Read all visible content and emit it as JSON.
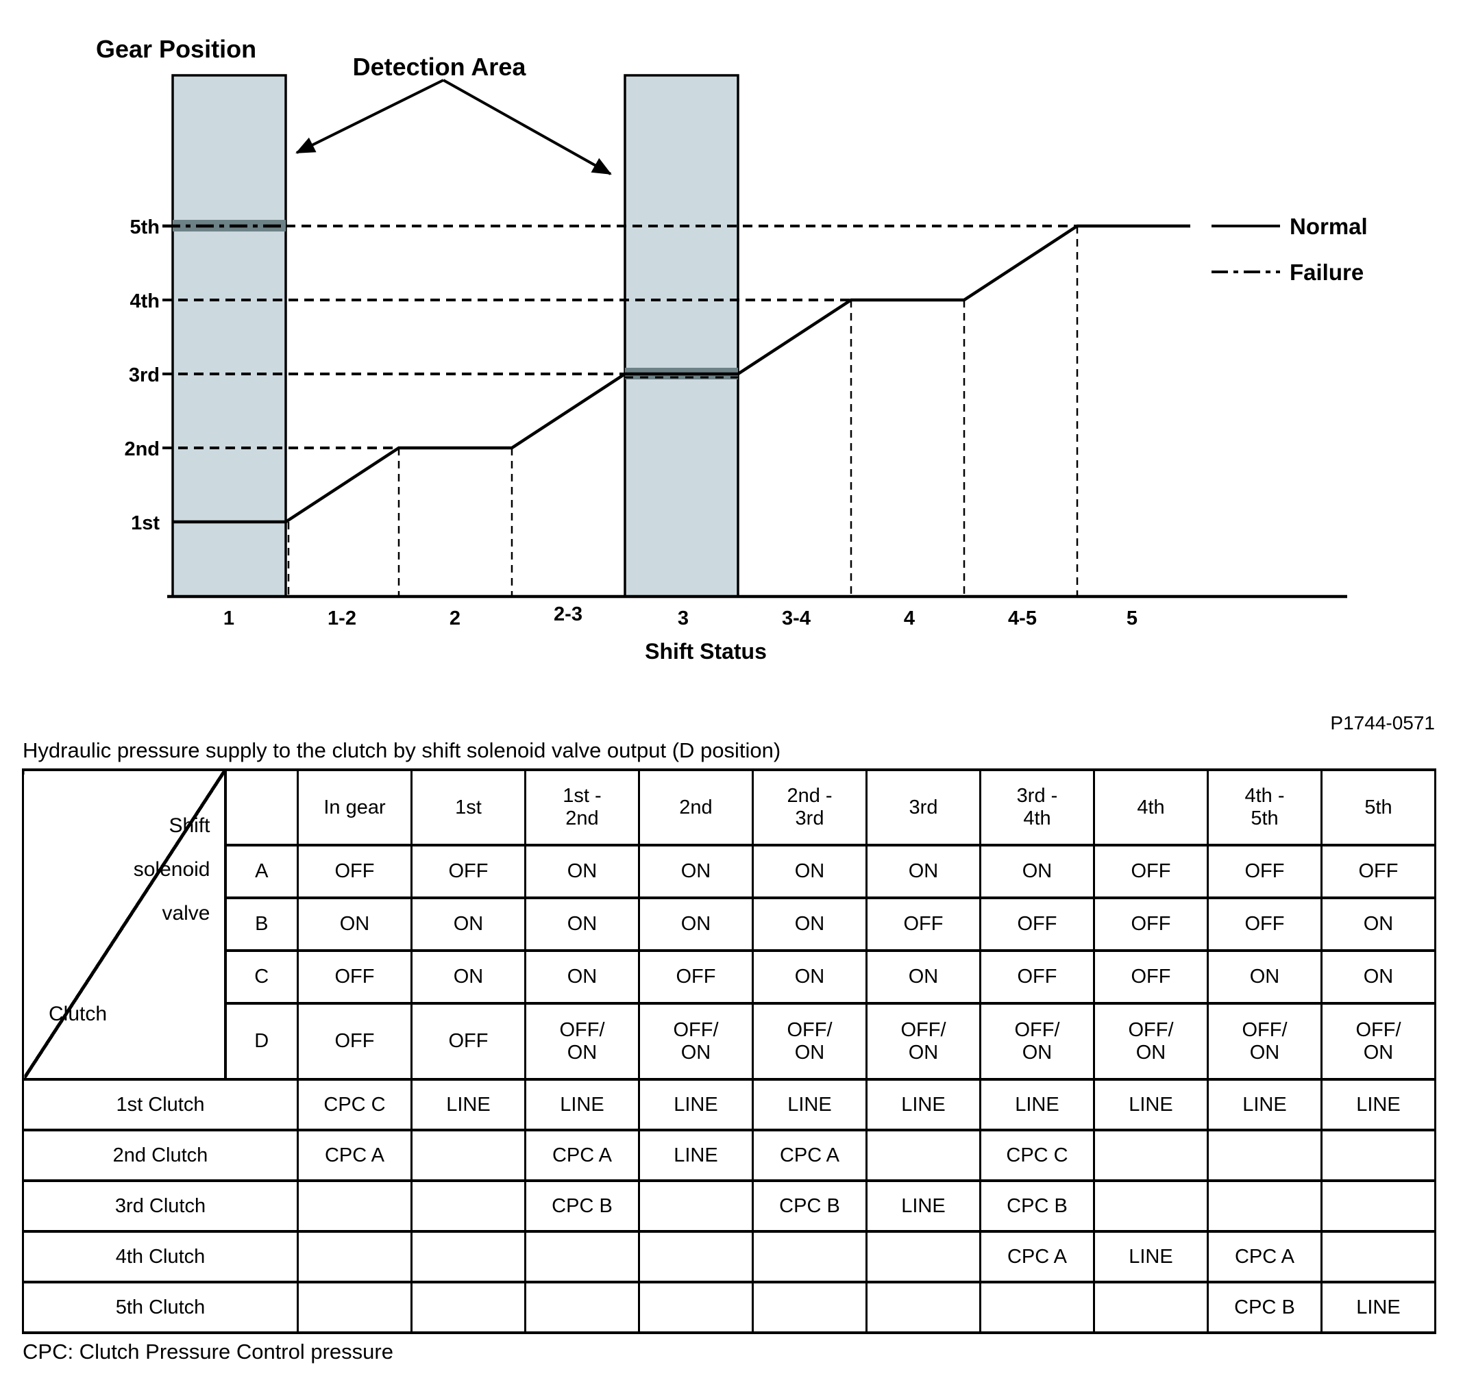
{
  "chart": {
    "y_axis_title": "Gear Position",
    "x_axis_title": "Shift Status",
    "detection_area_label": "Detection Area",
    "gear_labels": [
      "5th",
      "4th",
      "3rd",
      "2nd",
      "1st"
    ],
    "shift_status_ticks": [
      "1",
      "1-2",
      "2",
      "2-3",
      "3",
      "3-4",
      "4",
      "4-5",
      "5"
    ],
    "legend": {
      "normal_label": "Normal",
      "failure_label": "Failure"
    },
    "colors": {
      "detection_band": "#ccd9de",
      "failure_highlight": "#6d8287",
      "line": "#000000"
    }
  },
  "chart_data": {
    "type": "line",
    "title": "",
    "xlabel": "Shift Status",
    "ylabel": "Gear Position",
    "x": [
      "1",
      "1-2",
      "2",
      "2-3",
      "3",
      "3-4",
      "4",
      "4-5",
      "5"
    ],
    "series": [
      {
        "name": "Normal",
        "values": [
          "1st",
          "1st-2nd ramp",
          "2nd",
          "2nd-3rd ramp",
          "3rd",
          "3rd-4th ramp",
          "4th",
          "4th-5th ramp",
          "5th"
        ]
      },
      {
        "name": "Failure",
        "values": [
          "5th (detection area)",
          null,
          null,
          null,
          "3rd (detection area)",
          null,
          null,
          null,
          null
        ]
      }
    ],
    "detection_areas": [
      {
        "shift_status": "1",
        "failure_gear": "5th"
      },
      {
        "shift_status": "3",
        "failure_gear": "3rd"
      }
    ],
    "legend_position": "right",
    "grid": "dashed horizontal per gear level"
  },
  "table": {
    "title": "Hydraulic pressure supply to the clutch by shift solenoid valve output (D position)",
    "figure_code": "P1744-0571",
    "corner": {
      "top_label": "Shift\nsolenoid\nvalve",
      "bottom_label": "Clutch"
    },
    "column_headers": [
      "In gear",
      "1st",
      "1st -\n2nd",
      "2nd",
      "2nd -\n3rd",
      "3rd",
      "3rd -\n4th",
      "4th",
      "4th -\n5th",
      "5th"
    ],
    "valve_rows": [
      {
        "label": "A",
        "values": [
          "OFF",
          "OFF",
          "ON",
          "ON",
          "ON",
          "ON",
          "ON",
          "OFF",
          "OFF",
          "OFF"
        ]
      },
      {
        "label": "B",
        "values": [
          "ON",
          "ON",
          "ON",
          "ON",
          "ON",
          "OFF",
          "OFF",
          "OFF",
          "OFF",
          "ON"
        ]
      },
      {
        "label": "C",
        "values": [
          "OFF",
          "ON",
          "ON",
          "OFF",
          "ON",
          "ON",
          "OFF",
          "OFF",
          "ON",
          "ON"
        ]
      },
      {
        "label": "D",
        "values": [
          "OFF",
          "OFF",
          "OFF/\nON",
          "OFF/\nON",
          "OFF/\nON",
          "OFF/\nON",
          "OFF/\nON",
          "OFF/\nON",
          "OFF/\nON",
          "OFF/\nON"
        ]
      }
    ],
    "clutch_rows": [
      {
        "label": "1st Clutch",
        "values": [
          "CPC C",
          "LINE",
          "LINE",
          "LINE",
          "LINE",
          "LINE",
          "LINE",
          "LINE",
          "LINE",
          "LINE"
        ]
      },
      {
        "label": "2nd Clutch",
        "values": [
          "CPC A",
          "",
          "CPC A",
          "LINE",
          "CPC A",
          "",
          "CPC C",
          "",
          "",
          ""
        ]
      },
      {
        "label": "3rd Clutch",
        "values": [
          "",
          "",
          "CPC B",
          "",
          "CPC B",
          "LINE",
          "CPC B",
          "",
          "",
          ""
        ]
      },
      {
        "label": "4th Clutch",
        "values": [
          "",
          "",
          "",
          "",
          "",
          "",
          "CPC A",
          "LINE",
          "CPC A",
          ""
        ]
      },
      {
        "label": "5th Clutch",
        "values": [
          "",
          "",
          "",
          "",
          "",
          "",
          "",
          "",
          "CPC B",
          "LINE"
        ]
      }
    ],
    "footnote": "CPC: Clutch Pressure Control pressure"
  }
}
